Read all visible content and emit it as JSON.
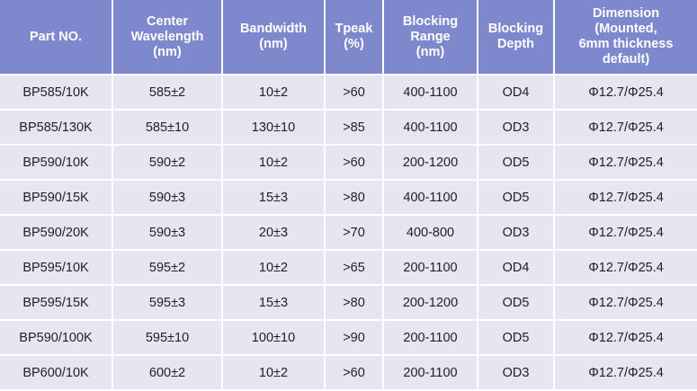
{
  "table": {
    "header": [
      [
        "Part NO."
      ],
      [
        "Center",
        "Wavelength",
        "(nm)"
      ],
      [
        "Bandwidth",
        "(nm)"
      ],
      [
        "Tpeak",
        "(%)"
      ],
      [
        "Blocking",
        "Range",
        "(nm)"
      ],
      [
        "Blocking",
        "Depth"
      ],
      [
        "Dimension",
        "(Mounted,",
        "6mm thickness",
        "default)"
      ]
    ],
    "rows": [
      [
        "BP585/10K",
        "585±2",
        "10±2",
        ">60",
        "400-1100",
        "OD4",
        "Φ12.7/Φ25.4"
      ],
      [
        "BP585/130K",
        "585±10",
        "130±10",
        ">85",
        "400-1100",
        "OD3",
        "Φ12.7/Φ25.4"
      ],
      [
        "BP590/10K",
        "590±2",
        "10±2",
        ">60",
        "200-1200",
        "OD5",
        "Φ12.7/Φ25.4"
      ],
      [
        "BP590/15K",
        "590±3",
        "15±3",
        ">80",
        "400-1100",
        "OD5",
        "Φ12.7/Φ25.4"
      ],
      [
        "BP590/20K",
        "590±3",
        "20±3",
        ">70",
        "400-800",
        "OD3",
        "Φ12.7/Φ25.4"
      ],
      [
        "BP595/10K",
        "595±2",
        "10±2",
        ">65",
        "200-1100",
        "OD4",
        "Φ12.7/Φ25.4"
      ],
      [
        "BP595/15K",
        "595±3",
        "15±3",
        ">80",
        "200-1200",
        "OD5",
        "Φ12.7/Φ25.4"
      ],
      [
        "BP590/100K",
        "595±10",
        "100±10",
        ">90",
        "200-1100",
        "OD5",
        "Φ12.7/Φ25.4"
      ],
      [
        "BP600/10K",
        "600±2",
        "10±2",
        ">60",
        "200-1100",
        "OD3",
        "Φ12.7/Φ25.4"
      ]
    ]
  }
}
